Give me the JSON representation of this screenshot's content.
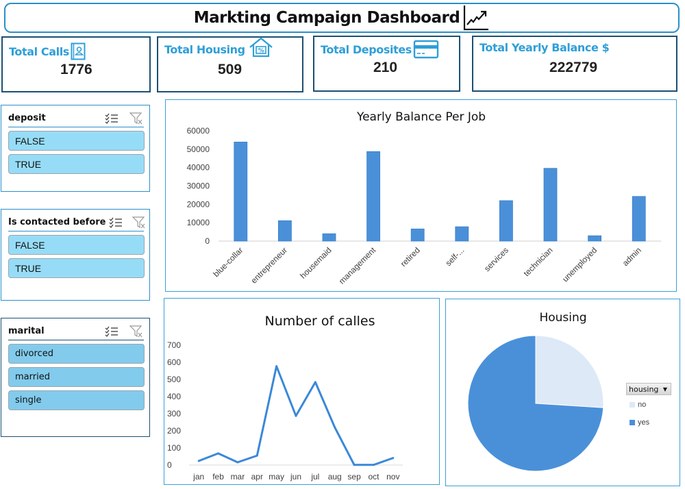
{
  "header": {
    "title": "Markting Campaign Dashboard",
    "icon": "trend-chart-icon"
  },
  "kpis": [
    {
      "label": "Total Calls",
      "value": "1776",
      "icon": "contact-card-icon"
    },
    {
      "label": "Total Housing",
      "value": "509",
      "icon": "house-percent-icon"
    },
    {
      "label": "Total Deposites",
      "value": "210",
      "icon": "credit-card-icon"
    },
    {
      "label": "Total Yearly Balance $",
      "value": "222779",
      "icon": ""
    }
  ],
  "slicers": [
    {
      "title": "deposit",
      "items": [
        "FALSE",
        "TRUE"
      ]
    },
    {
      "title": "Is contacted before",
      "items": [
        "FALSE",
        "TRUE"
      ]
    },
    {
      "title": "marital",
      "items": [
        "divorced",
        "married",
        "single"
      ]
    }
  ],
  "colors": {
    "accent": "#2e9fd8",
    "kpi_border": "#1b4f72",
    "bar": "#4a90d9",
    "line": "#3a88d8",
    "pie_yes": "#4a90d9",
    "pie_no": "#dde9f6",
    "slicer_item": "#97dcf7"
  },
  "chart_data": [
    {
      "type": "bar",
      "title": "Yearly Balance Per Job",
      "categories": [
        "blue-collar",
        "entrepreneur",
        "housemaid",
        "management",
        "retired",
        "self-...",
        "services",
        "technician",
        "unemployed",
        "admin"
      ],
      "values": [
        53900,
        11100,
        4000,
        48700,
        6600,
        7800,
        22000,
        39600,
        2900,
        24300
      ],
      "yticks": [
        0,
        10000,
        20000,
        30000,
        40000,
        50000,
        60000
      ],
      "ylim": [
        0,
        60000
      ],
      "xlabel": "",
      "ylabel": "",
      "grid": false,
      "legend": "none"
    },
    {
      "type": "line",
      "title": "Number of calles",
      "categories": [
        "jan",
        "feb",
        "mar",
        "apr",
        "may",
        "jun",
        "jul",
        "aug",
        "sep",
        "oct",
        "nov"
      ],
      "values": [
        24,
        68,
        16,
        55,
        577,
        287,
        484,
        220,
        1,
        1,
        41
      ],
      "yticks": [
        0,
        100,
        200,
        300,
        400,
        500,
        600,
        700
      ],
      "ylim": [
        0,
        700
      ],
      "xlabel": "",
      "ylabel": "",
      "grid": false,
      "legend": "none"
    },
    {
      "type": "pie",
      "title": "Housing",
      "legend_title": "housing",
      "labels": [
        "no",
        "yes"
      ],
      "values": [
        26,
        74
      ],
      "legend": "right"
    }
  ]
}
